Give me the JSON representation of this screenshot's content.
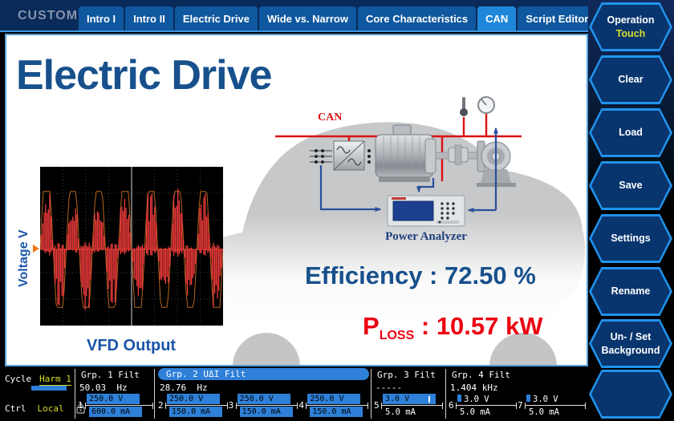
{
  "header": {
    "brand": "CUSTOM",
    "tabs": [
      "Intro I",
      "Intro II",
      "Electric Drive",
      "Wide vs. Narrow",
      "Core Characteristics",
      "CAN",
      "Script Editor"
    ],
    "active_tab": "CAN"
  },
  "sidebar": {
    "buttons": [
      {
        "line1": "Operation",
        "line2": "Touch",
        "accent2": true
      },
      {
        "line1": "Clear"
      },
      {
        "line1": "Load"
      },
      {
        "line1": "Save"
      },
      {
        "line1": "Settings"
      },
      {
        "line1": "Rename"
      },
      {
        "line1": "Un- / Set",
        "line2": "Background"
      },
      {
        "line1": ""
      }
    ]
  },
  "main": {
    "title": "Electric Drive",
    "plot_axis_label": "Voltage V",
    "plot_caption": "VFD Output",
    "efficiency_label": "Efficiency :",
    "efficiency_value": "72.50 %",
    "ploss_symbol": "P",
    "ploss_subscript": "LOSS",
    "ploss_sep": " : ",
    "ploss_value": "10.57 kW",
    "diagram": {
      "bus_label": "CAN",
      "analyzer_label": "Power Analyzer"
    },
    "waveform": {
      "type": "pwm-line",
      "cycles": 7,
      "clip": 1.45,
      "color": "#f43b3b",
      "envelope_color": "#b5651d",
      "baseline_color": "#d14b2a"
    }
  },
  "statusbar": {
    "cycle_label": "Cycle",
    "cycle_value": "Harm 1",
    "ctrl_label": "Ctrl",
    "ctrl_value": "Local",
    "groups": [
      {
        "name": "Grp. 1 Filt",
        "freq": "50.03  Hz",
        "highlight": false,
        "meters": [
          {
            "num": "1",
            "v": "250.0 V",
            "a": "600.0 mA",
            "v_style": "bar",
            "a_style": "bar"
          }
        ]
      },
      {
        "name": "Grp. 2 UΔI Filt",
        "freq": "28.76  Hz",
        "highlight": true,
        "meters": [
          {
            "num": "2",
            "v": "250.0 V",
            "a": "150.0 mA",
            "v_style": "bar",
            "a_style": "bar"
          },
          {
            "num": "3",
            "v": "250.0 V",
            "a": "150.0 mA",
            "v_style": "bar",
            "a_style": "bar"
          },
          {
            "num": "4",
            "v": "250.0 V",
            "a": "150.0 mA",
            "v_style": "bar",
            "a_style": "bar"
          }
        ]
      },
      {
        "name": "Grp. 3 Filt",
        "freq": "-----",
        "highlight": false,
        "meters": [
          {
            "num": "5",
            "v": "3.0 V",
            "a": "5.0 mA",
            "v_style": "bar-tick",
            "a_style": "plain"
          }
        ]
      },
      {
        "name": "Grp. 4 Filt",
        "freq": "1.404 kHz",
        "highlight": false,
        "meters": [
          {
            "num": "6",
            "v": "3.0 V",
            "a": "5.0 mA",
            "v_style": "chip",
            "a_style": "plain"
          },
          {
            "num": "7",
            "v": "3.0 V",
            "a": "5.0 mA",
            "v_style": "chip",
            "a_style": "plain"
          }
        ]
      }
    ]
  },
  "colors": {
    "accent_blue": "#1f87d9",
    "bar_blue": "#2e80d8",
    "alert_red": "#ec0011",
    "title_blue": "#17508c",
    "softkey_yellow": "#d6de2a",
    "can_red": "#dd1111",
    "wire_blue": "#2a4f9c",
    "car_gray": "#c6c8c9"
  }
}
